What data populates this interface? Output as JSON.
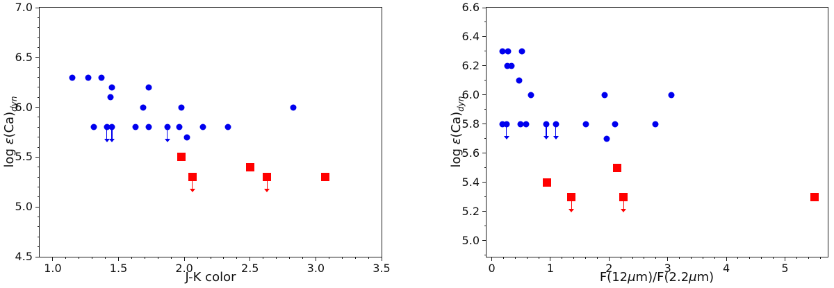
{
  "figure": {
    "background_color": "#ffffff",
    "axis_color": "#1a1a1a",
    "circle_color": "#0000ee",
    "square_color": "#ff0000"
  },
  "chart_data": [
    {
      "type": "scatter",
      "panel": "left",
      "title": "",
      "xlabel": "J-K color",
      "ylabel": "log ε(Ca)dyn",
      "ylabel_parts": {
        "prefix": "log ",
        "symbol": "ε",
        "element": "(Ca)",
        "subscript": "dyn"
      },
      "xlim": [
        0.9,
        3.5
      ],
      "ylim": [
        4.5,
        7.0
      ],
      "grid": false,
      "legend": false,
      "x_major_ticks": [
        1.0,
        1.5,
        2.0,
        2.5,
        3.0,
        3.5
      ],
      "x_tick_labels": [
        "1.0",
        "1.5",
        "2.0",
        "2.5",
        "3.0",
        "3.5"
      ],
      "x_minor_step": 0.1,
      "y_major_ticks": [
        4.5,
        5.0,
        5.5,
        6.0,
        6.5,
        7.0
      ],
      "y_tick_labels": [
        "4.5",
        "5.0",
        "5.5",
        "6.0",
        "6.5",
        "7.0"
      ],
      "y_minor_step": 0.1,
      "series": [
        {
          "name": "blue-circles",
          "marker": "circle",
          "color": "#0000ee",
          "points": [
            {
              "x": 1.15,
              "y": 6.3
            },
            {
              "x": 1.27,
              "y": 6.3
            },
            {
              "x": 1.37,
              "y": 6.3
            },
            {
              "x": 1.45,
              "y": 6.2
            },
            {
              "x": 1.73,
              "y": 6.2
            },
            {
              "x": 1.44,
              "y": 6.1
            },
            {
              "x": 1.69,
              "y": 6.0
            },
            {
              "x": 1.98,
              "y": 6.0
            },
            {
              "x": 2.83,
              "y": 6.0
            },
            {
              "x": 1.31,
              "y": 5.8
            },
            {
              "x": 1.41,
              "y": 5.8,
              "upper_limit": true
            },
            {
              "x": 1.45,
              "y": 5.8,
              "upper_limit": true
            },
            {
              "x": 1.63,
              "y": 5.8
            },
            {
              "x": 1.73,
              "y": 5.8
            },
            {
              "x": 1.87,
              "y": 5.8,
              "upper_limit": true
            },
            {
              "x": 1.96,
              "y": 5.8
            },
            {
              "x": 2.14,
              "y": 5.8
            },
            {
              "x": 2.33,
              "y": 5.8
            },
            {
              "x": 2.02,
              "y": 5.7
            }
          ]
        },
        {
          "name": "red-squares",
          "marker": "square",
          "color": "#ff0000",
          "points": [
            {
              "x": 1.98,
              "y": 5.5
            },
            {
              "x": 2.06,
              "y": 5.3,
              "upper_limit": true
            },
            {
              "x": 2.5,
              "y": 5.4
            },
            {
              "x": 2.63,
              "y": 5.3,
              "upper_limit": true
            },
            {
              "x": 3.07,
              "y": 5.3
            }
          ]
        }
      ]
    },
    {
      "type": "scatter",
      "panel": "right",
      "title": "",
      "xlabel": "F(12μm)/F(2.2μm)",
      "xlabel_parts": {
        "p1": "F(12",
        "mu1": "μ",
        "p2": "m)/F(2.2",
        "mu2": "μ",
        "p3": "m)"
      },
      "ylabel": "log ε(Ca)dyn",
      "ylabel_parts": {
        "prefix": "log ",
        "symbol": "ε",
        "element": "(Ca)",
        "subscript": "dyn"
      },
      "xlim": [
        -0.09,
        5.73
      ],
      "ylim": [
        4.89,
        6.6
      ],
      "grid": false,
      "legend": false,
      "x_major_ticks": [
        0,
        1,
        2,
        3,
        4,
        5
      ],
      "x_tick_labels": [
        "0",
        "1",
        "2",
        "3",
        "4",
        "5"
      ],
      "x_minor_step": 0.2,
      "y_major_ticks": [
        5.0,
        5.2,
        5.4,
        5.6,
        5.8,
        6.0,
        6.2,
        6.4,
        6.6
      ],
      "y_tick_labels": [
        "5.0",
        "5.2",
        "5.4",
        "5.6",
        "5.8",
        "6.0",
        "6.2",
        "6.4",
        "6.6"
      ],
      "y_minor_step": 0.1,
      "series": [
        {
          "name": "blue-circles",
          "marker": "circle",
          "color": "#0000ee",
          "points": [
            {
              "x": 0.18,
              "y": 6.3
            },
            {
              "x": 0.28,
              "y": 6.3
            },
            {
              "x": 0.52,
              "y": 6.3
            },
            {
              "x": 0.26,
              "y": 6.2
            },
            {
              "x": 0.34,
              "y": 6.2
            },
            {
              "x": 0.47,
              "y": 6.1
            },
            {
              "x": 0.67,
              "y": 6.0
            },
            {
              "x": 1.93,
              "y": 6.0
            },
            {
              "x": 3.06,
              "y": 6.0
            },
            {
              "x": 0.18,
              "y": 5.8
            },
            {
              "x": 0.25,
              "y": 5.8,
              "upper_limit": true
            },
            {
              "x": 0.49,
              "y": 5.8
            },
            {
              "x": 0.58,
              "y": 5.8
            },
            {
              "x": 0.93,
              "y": 5.8,
              "upper_limit": true
            },
            {
              "x": 1.09,
              "y": 5.8,
              "upper_limit": true
            },
            {
              "x": 1.61,
              "y": 5.8
            },
            {
              "x": 2.1,
              "y": 5.8
            },
            {
              "x": 2.79,
              "y": 5.8
            },
            {
              "x": 1.96,
              "y": 5.7
            }
          ]
        },
        {
          "name": "red-squares",
          "marker": "square",
          "color": "#ff0000",
          "points": [
            {
              "x": 0.94,
              "y": 5.4
            },
            {
              "x": 1.36,
              "y": 5.3,
              "upper_limit": true
            },
            {
              "x": 2.14,
              "y": 5.5
            },
            {
              "x": 2.25,
              "y": 5.3,
              "upper_limit": true
            },
            {
              "x": 5.5,
              "y": 5.3
            }
          ]
        }
      ]
    }
  ]
}
